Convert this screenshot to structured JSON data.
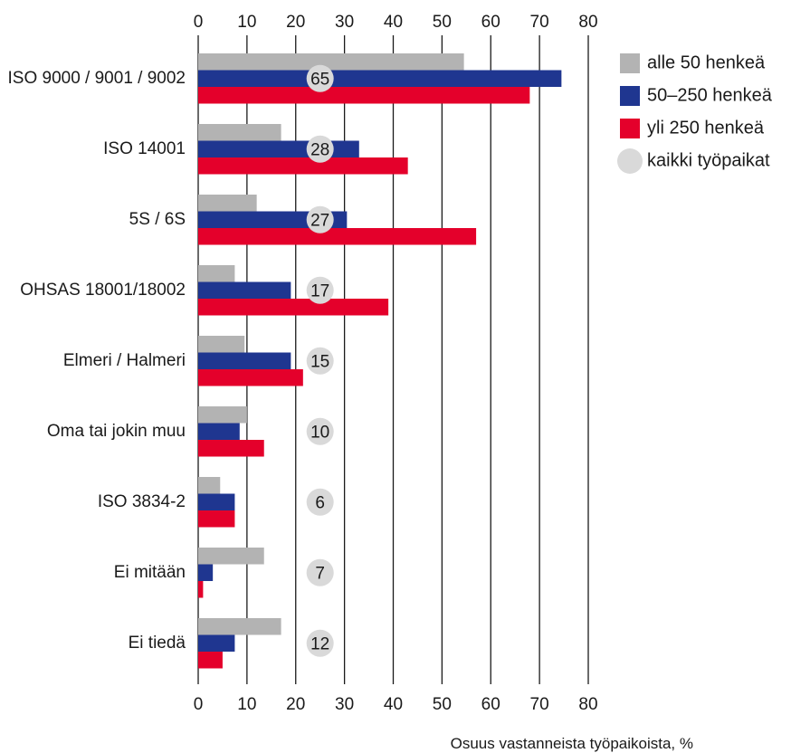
{
  "chart_data": {
    "type": "bar",
    "orientation": "horizontal",
    "title": "",
    "xlabel": "Osuus vastanneista työpaikoista, %",
    "ylabel": "",
    "xlim": [
      0,
      80
    ],
    "xticks": [
      0,
      10,
      20,
      30,
      40,
      50,
      60,
      70,
      80
    ],
    "grid": true,
    "legend_position": "top-right",
    "categories": [
      "ISO 9000 / 9001 / 9002",
      "ISO 14001",
      "5S / 6S",
      "OHSAS 18001/18002",
      "Elmeri / Halmeri",
      "Oma tai jokin muu",
      "ISO 3834-2",
      "Ei mitään",
      "Ei tiedä"
    ],
    "series": [
      {
        "name": "alle 50 henkeä",
        "color": "#b3b3b3",
        "values": [
          54.5,
          17,
          12,
          7.5,
          9.5,
          10,
          4.5,
          13.5,
          17
        ]
      },
      {
        "name": "50–250 henkeä",
        "color": "#1f3690",
        "values": [
          74.5,
          33,
          30.5,
          19,
          19,
          8.5,
          7.5,
          3,
          7.5
        ]
      },
      {
        "name": "yli 250 henkeä",
        "color": "#e4002b",
        "values": [
          68,
          43,
          57,
          39,
          21.5,
          13.5,
          7.5,
          1,
          5
        ]
      }
    ],
    "all_workplaces": {
      "name": "kaikki työpaikat",
      "color": "#d9d9d9",
      "values": [
        65,
        28,
        27,
        17,
        15,
        10,
        6,
        7,
        12
      ]
    }
  }
}
